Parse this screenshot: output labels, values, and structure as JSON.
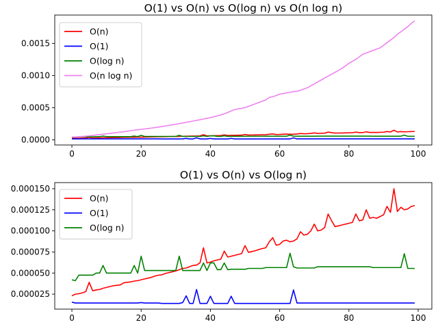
{
  "chart_data": [
    {
      "type": "line",
      "title": "O(1) vs O(n) vs O(log n) vs O(n log n)",
      "xlabel": "",
      "ylabel": "",
      "xlim": [
        -4.95,
        103.95
      ],
      "ylim": [
        -8e-05,
        0.00194
      ],
      "xticks": [
        0,
        20,
        40,
        60,
        80,
        100
      ],
      "xtick_labels": [
        "0",
        "20",
        "40",
        "60",
        "80",
        "100"
      ],
      "yticks": [
        0.0,
        0.0005,
        0.001,
        0.0015
      ],
      "ytick_labels": [
        "0.0000",
        "0.0005",
        "0.0010",
        "0.0015"
      ],
      "grid": false,
      "legend_position": "upper left",
      "x": [
        0,
        1,
        2,
        3,
        4,
        5,
        6,
        7,
        8,
        9,
        10,
        11,
        12,
        13,
        14,
        15,
        16,
        17,
        18,
        19,
        20,
        21,
        22,
        23,
        24,
        25,
        26,
        27,
        28,
        29,
        30,
        31,
        32,
        33,
        34,
        35,
        36,
        37,
        38,
        39,
        40,
        41,
        42,
        43,
        44,
        45,
        46,
        47,
        48,
        49,
        50,
        51,
        52,
        53,
        54,
        55,
        56,
        57,
        58,
        59,
        60,
        61,
        62,
        63,
        64,
        65,
        66,
        67,
        68,
        69,
        70,
        71,
        72,
        73,
        74,
        75,
        76,
        77,
        78,
        79,
        80,
        81,
        82,
        83,
        84,
        85,
        86,
        87,
        88,
        89,
        90,
        91,
        92,
        93,
        94,
        95,
        96,
        97,
        98,
        99
      ],
      "series": [
        {
          "name": "O(n)",
          "color": "#ff0000",
          "values": [
            2.3e-05,
            2.5e-05,
            2.55e-05,
            2.65e-05,
            2.8e-05,
            3.9e-05,
            2.9e-05,
            3e-05,
            3.05e-05,
            3.2e-05,
            3.3e-05,
            3.4e-05,
            3.5e-05,
            3.55e-05,
            3.6e-05,
            3.85e-05,
            3.9e-05,
            3.95e-05,
            4.05e-05,
            4.1e-05,
            4.2e-05,
            4.3e-05,
            4.4e-05,
            4.5e-05,
            4.65e-05,
            4.75e-05,
            4.8e-05,
            4.95e-05,
            5.05e-05,
            5.15e-05,
            5.25e-05,
            5.4e-05,
            5.55e-05,
            5.6e-05,
            5.75e-05,
            5.9e-05,
            5.95e-05,
            6.2e-05,
            8e-05,
            6.2e-05,
            6.3e-05,
            6.45e-05,
            6.55e-05,
            6.65e-05,
            7.6e-05,
            6.9e-05,
            7e-05,
            7.1e-05,
            7.2e-05,
            7.3e-05,
            8.25e-05,
            7.45e-05,
            7.55e-05,
            7.65e-05,
            7.8e-05,
            7.9e-05,
            8e-05,
            8.7e-05,
            9.2e-05,
            8.3e-05,
            8.4e-05,
            8.8e-05,
            8.9e-05,
            8.7e-05,
            8.8e-05,
            9.05e-05,
            9.9e-05,
            9.5e-05,
            9.6e-05,
            0.0001,
            0.000108,
            0.0001,
            0.000101,
            0.000104,
            0.00012,
            0.000112,
            0.000105,
            0.000106,
            0.000107,
            0.000108,
            0.000109,
            0.00011,
            0.00012,
            0.000112,
            0.000113,
            0.000125,
            0.000115,
            0.000116,
            0.000115,
            0.000117,
            0.000119,
            0.000129,
            0.000122,
            0.00015,
            0.000123,
            0.000128,
            0.000125,
            0.000126,
            0.000129,
            0.00013
          ]
        },
        {
          "name": "O(1)",
          "color": "#0000ff",
          "values": [
            1.55e-05,
            1.45e-05,
            1.45e-05,
            1.45e-05,
            1.45e-05,
            1.45e-05,
            1.45e-05,
            1.45e-05,
            1.45e-05,
            1.45e-05,
            1.45e-05,
            1.45e-05,
            1.45e-05,
            1.45e-05,
            1.45e-05,
            1.45e-05,
            1.45e-05,
            1.45e-05,
            1.45e-05,
            1.45e-05,
            1.5e-05,
            1.45e-05,
            1.45e-05,
            1.45e-05,
            1.45e-05,
            1.45e-05,
            1.4e-05,
            1.4e-05,
            1.4e-05,
            1.4e-05,
            1.4e-05,
            1.4e-05,
            1.5e-05,
            2.3e-05,
            1.4e-05,
            1.4e-05,
            3.05e-05,
            1.4e-05,
            1.4e-05,
            1.4e-05,
            2.25e-05,
            1.4e-05,
            1.4e-05,
            1.4e-05,
            1.4e-05,
            1.4e-05,
            2.25e-05,
            1.4e-05,
            1.4e-05,
            1.4e-05,
            1.4e-05,
            1.4e-05,
            1.4e-05,
            1.4e-05,
            1.4e-05,
            1.4e-05,
            1.4e-05,
            1.4e-05,
            1.4e-05,
            1.4e-05,
            1.4e-05,
            1.4e-05,
            1.4e-05,
            1.4e-05,
            3e-05,
            1.45e-05,
            1.45e-05,
            1.45e-05,
            1.45e-05,
            1.45e-05,
            1.45e-05,
            1.45e-05,
            1.45e-05,
            1.45e-05,
            1.45e-05,
            1.45e-05,
            1.45e-05,
            1.45e-05,
            1.45e-05,
            1.45e-05,
            1.45e-05,
            1.45e-05,
            1.45e-05,
            1.45e-05,
            1.45e-05,
            1.45e-05,
            1.45e-05,
            1.45e-05,
            1.45e-05,
            1.45e-05,
            1.45e-05,
            1.45e-05,
            1.45e-05,
            1.45e-05,
            1.45e-05,
            1.45e-05,
            1.45e-05,
            1.45e-05,
            1.45e-05,
            1.45e-05
          ]
        },
        {
          "name": "O(log n)",
          "color": "#008000",
          "values": [
            4.2e-05,
            4.1e-05,
            4.75e-05,
            4.75e-05,
            4.75e-05,
            4.75e-05,
            4.75e-05,
            5e-05,
            5e-05,
            5.9e-05,
            5e-05,
            5e-05,
            5e-05,
            5e-05,
            5e-05,
            5e-05,
            5e-05,
            5e-05,
            5.9e-05,
            5e-05,
            7e-05,
            5.3e-05,
            5.3e-05,
            5.3e-05,
            5.3e-05,
            5.3e-05,
            5.3e-05,
            5.3e-05,
            5.3e-05,
            5.3e-05,
            5.3e-05,
            7e-05,
            5.3e-05,
            5.3e-05,
            5.3e-05,
            5.3e-05,
            5.3e-05,
            5.3e-05,
            6.2e-05,
            5.3e-05,
            6.2e-05,
            6.2e-05,
            5.4e-05,
            5.4e-05,
            6.2e-05,
            5.4e-05,
            5.45e-05,
            5.45e-05,
            5.45e-05,
            5.45e-05,
            5.45e-05,
            5.55e-05,
            5.55e-05,
            5.55e-05,
            5.55e-05,
            5.55e-05,
            5.65e-05,
            5.65e-05,
            5.65e-05,
            5.65e-05,
            5.65e-05,
            5.65e-05,
            5.65e-05,
            7.35e-05,
            5.75e-05,
            5.6e-05,
            5.6e-05,
            5.6e-05,
            5.6e-05,
            5.6e-05,
            5.6e-05,
            5.75e-05,
            5.75e-05,
            5.75e-05,
            5.75e-05,
            5.75e-05,
            5.75e-05,
            5.75e-05,
            5.75e-05,
            5.75e-05,
            5.75e-05,
            5.75e-05,
            5.75e-05,
            5.75e-05,
            5.75e-05,
            5.75e-05,
            5.75e-05,
            5.65e-05,
            5.65e-05,
            5.65e-05,
            5.65e-05,
            5.65e-05,
            5.65e-05,
            5.65e-05,
            5.65e-05,
            5.65e-05,
            7.3e-05,
            5.55e-05,
            5.55e-05,
            5.55e-05
          ]
        },
        {
          "name": "O(n log n)",
          "color": "#ee82ee",
          "values": [
            4.2e-05,
            4.5e-05,
            4.8e-05,
            5.2e-05,
            5.7e-05,
            6.2e-05,
            6.8e-05,
            7.6e-05,
            8.3e-05,
            8.8e-05,
            9.3e-05,
            0.0001,
            0.000107,
            0.000113,
            0.00012,
            0.000127,
            0.000135,
            0.000142,
            0.00015,
            0.000156,
            0.000163,
            0.00017,
            0.000176,
            0.000183,
            0.00019,
            0.000198,
            0.000206,
            0.000215,
            0.000224,
            0.000233,
            0.000242,
            0.000252,
            0.000262,
            0.000272,
            0.000282,
            0.000292,
            0.000303,
            0.000313,
            0.000324,
            0.000334,
            0.000345,
            0.000358,
            0.000372,
            0.000387,
            0.000405,
            0.000425,
            0.00045,
            0.00047,
            0.00048,
            0.00049,
            0.0005,
            0.00052,
            0.00054,
            0.00056,
            0.00058,
            0.0006,
            0.00062,
            0.00066,
            0.00067,
            0.00069,
            0.00071,
            0.00072,
            0.00073,
            0.00074,
            0.00075,
            0.000755,
            0.00077,
            0.00079,
            0.00081,
            0.00084,
            0.00087,
            0.0009,
            0.00093,
            0.00096,
            0.00099,
            0.00102,
            0.00105,
            0.00108,
            0.00111,
            0.00115,
            0.00119,
            0.00122,
            0.00125,
            0.00129,
            0.00133,
            0.00135,
            0.00137,
            0.00139,
            0.00141,
            0.00143,
            0.00147,
            0.00151,
            0.00155,
            0.00159,
            0.00164,
            0.00168,
            0.00172,
            0.00176,
            0.00181,
            0.00185
          ]
        }
      ]
    },
    {
      "type": "line",
      "title": "O(1) vs O(n) vs O(log n)",
      "xlabel": "",
      "ylabel": "",
      "xlim": [
        -4.95,
        103.95
      ],
      "ylim": [
        7.25e-06,
        0.00015725
      ],
      "xticks": [
        0,
        20,
        40,
        60,
        80,
        100
      ],
      "xtick_labels": [
        "0",
        "20",
        "40",
        "60",
        "80",
        "100"
      ],
      "yticks": [
        2.5e-05,
        5e-05,
        7.5e-05,
        0.0001,
        0.000125,
        0.00015
      ],
      "ytick_labels": [
        "0.000025",
        "0.000050",
        "0.000075",
        "0.000100",
        "0.000125",
        "0.000150"
      ],
      "grid": false,
      "legend_position": "upper left",
      "series_from_chart": 0,
      "series_names": [
        "O(n)",
        "O(1)",
        "O(log n)"
      ]
    }
  ]
}
